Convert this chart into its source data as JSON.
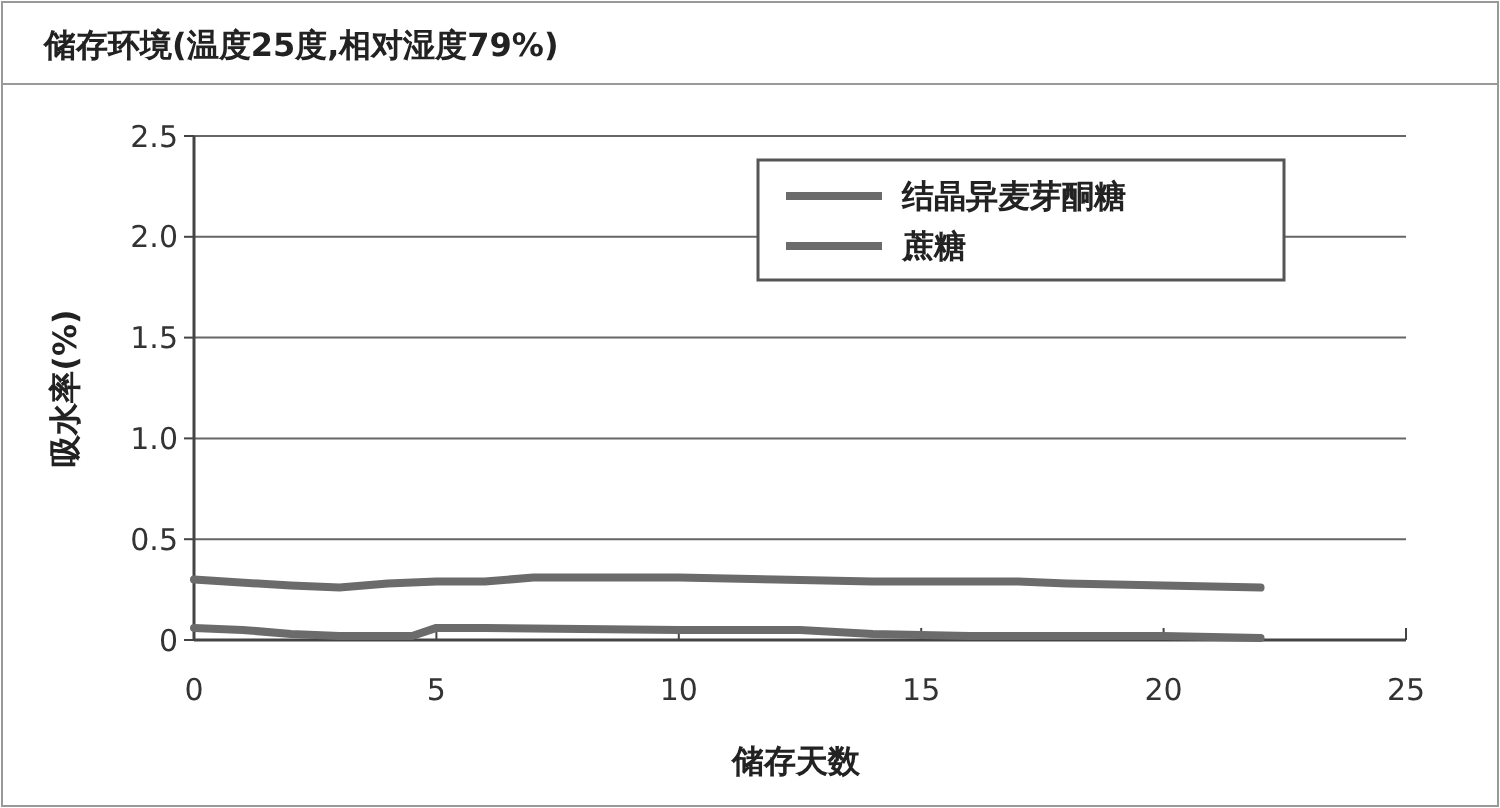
{
  "chart_data": {
    "type": "line",
    "title": "储存环境(温度25度,相对湿度79%)",
    "xlabel": "储存天数",
    "ylabel": "吸水率(%)",
    "xlim": [
      0,
      25
    ],
    "xticks": [
      0,
      5,
      10,
      15,
      20,
      25
    ],
    "ylim": [
      0,
      2.5
    ],
    "yticks": [
      0,
      0.5,
      {
        "value": 1,
        "label": "1.0"
      },
      1.5,
      {
        "value": 2,
        "label": "2.0"
      },
      2.5
    ],
    "grid": "y",
    "legend": "top right",
    "marker": "none",
    "line_style": "solid",
    "series": [
      {
        "name": "结晶异麦芽酮糖",
        "color": "#6b6b6b",
        "x": [
          0,
          2,
          3,
          4,
          5,
          6,
          7,
          10,
          12,
          14,
          17,
          18,
          20,
          22
        ],
        "values": [
          0.3,
          0.27,
          0.26,
          0.28,
          0.29,
          0.29,
          0.31,
          0.31,
          0.3,
          0.29,
          0.29,
          0.28,
          0.27,
          0.26
        ]
      },
      {
        "name": "蔗糖",
        "color": "#6b6b6b",
        "x": [
          0,
          1,
          2,
          3,
          4.5,
          5,
          6,
          10,
          12.5,
          14,
          16,
          20,
          22
        ],
        "values": [
          0.06,
          0.05,
          0.03,
          0.02,
          0.02,
          0.06,
          0.06,
          0.05,
          0.05,
          0.03,
          0.02,
          0.02,
          0.01
        ]
      }
    ]
  }
}
